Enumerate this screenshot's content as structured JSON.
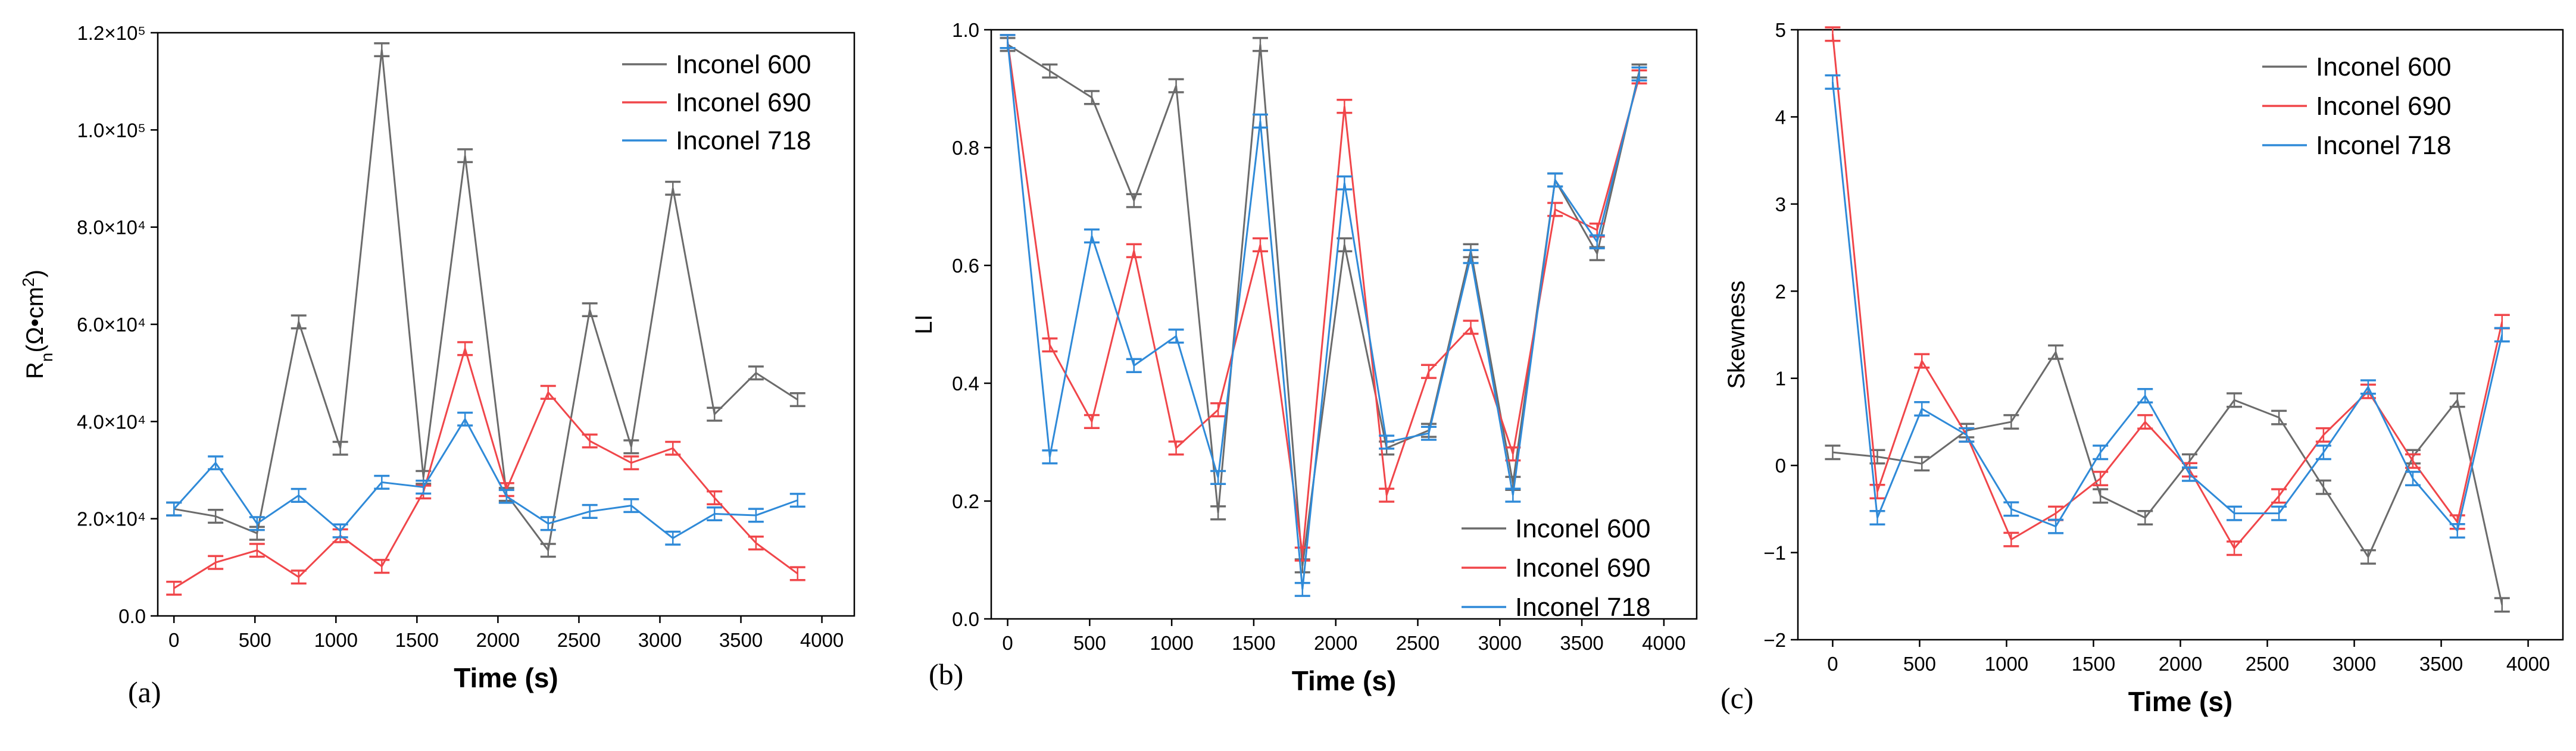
{
  "colors": {
    "Inconel 600": "#6b6b6b",
    "Inconel 690": "#f0464a",
    "Inconel 718": "#2f8ad8"
  },
  "chart_data": [
    {
      "panel_label": "(a)",
      "type": "line",
      "xlabel": "Time (s)",
      "ylabel_parts": [
        "R",
        "n",
        "(Ω•cm",
        "2",
        ")"
      ],
      "xlim": [
        -100,
        4200
      ],
      "ylim": [
        0,
        120000
      ],
      "xticks": [
        0,
        500,
        1000,
        1500,
        2000,
        2500,
        3000,
        3500,
        4000
      ],
      "yticks": [
        0,
        20000,
        40000,
        60000,
        80000,
        100000,
        120000
      ],
      "ytick_labels": [
        "0.0",
        "2.0×10⁴",
        "4.0×10⁴",
        "6.0×10⁴",
        "8.0×10⁴",
        "1.0×10⁵",
        "1.2×10⁵"
      ],
      "grid": false,
      "legend_position": "top-right",
      "x": [
        0,
        257,
        513,
        770,
        1027,
        1283,
        1540,
        1797,
        2053,
        2310,
        2567,
        2823,
        3080,
        3337,
        3593,
        3850
      ],
      "series": [
        {
          "name": "Inconel 600",
          "values": [
            22000,
            20500,
            17000,
            60500,
            34500,
            116500,
            28500,
            94700,
            25000,
            13500,
            63000,
            34800,
            88000,
            41500,
            50000,
            44500
          ]
        },
        {
          "name": "Inconel 690",
          "values": [
            5700,
            11000,
            13500,
            8000,
            16500,
            10200,
            25500,
            55000,
            26000,
            46000,
            36000,
            31500,
            34500,
            24300,
            15000,
            8700
          ]
        },
        {
          "name": "Inconel 718",
          "values": [
            22000,
            31500,
            19000,
            24800,
            17500,
            27500,
            26500,
            40500,
            24600,
            19000,
            21500,
            22700,
            16000,
            21000,
            20700,
            23800
          ]
        }
      ]
    },
    {
      "panel_label": "(b)",
      "type": "line",
      "xlabel": "Time (s)",
      "ylabel": "LI",
      "xlim": [
        -100,
        4200
      ],
      "ylim": [
        0,
        1.0
      ],
      "xticks": [
        0,
        500,
        1000,
        1500,
        2000,
        2500,
        3000,
        3500,
        4000
      ],
      "yticks": [
        0.0,
        0.2,
        0.4,
        0.6,
        0.8,
        1.0
      ],
      "ytick_labels": [
        "0.0",
        "0.2",
        "0.4",
        "0.6",
        "0.8",
        "1.0"
      ],
      "grid": false,
      "legend_position": "bottom-right",
      "x": [
        0,
        257,
        513,
        770,
        1027,
        1283,
        1540,
        1797,
        2053,
        2310,
        2567,
        2823,
        3080,
        3337,
        3593,
        3850
      ],
      "series": [
        {
          "name": "Inconel 600",
          "values": [
            0.975,
            0.93,
            0.885,
            0.71,
            0.905,
            0.18,
            0.975,
            0.09,
            0.635,
            0.29,
            0.32,
            0.625,
            0.23,
            0.745,
            0.62,
            0.93
          ]
        },
        {
          "name": "Inconel 690",
          "values": [
            0.98,
            0.465,
            0.335,
            0.625,
            0.29,
            0.355,
            0.635,
            0.11,
            0.87,
            0.21,
            0.42,
            0.495,
            0.28,
            0.695,
            0.66,
            0.92
          ]
        },
        {
          "name": "Inconel 718",
          "values": [
            0.98,
            0.275,
            0.65,
            0.43,
            0.48,
            0.24,
            0.845,
            0.05,
            0.74,
            0.3,
            0.315,
            0.615,
            0.21,
            0.745,
            0.64,
            0.925
          ]
        }
      ]
    },
    {
      "panel_label": "(c)",
      "type": "line",
      "xlabel": "Time (s)",
      "ylabel": "Skewness",
      "xlim": [
        -200,
        4200
      ],
      "ylim": [
        -2,
        5
      ],
      "xticks": [
        0,
        500,
        1000,
        1500,
        2000,
        2500,
        3000,
        3500,
        4000
      ],
      "yticks": [
        -2,
        -1,
        0,
        1,
        2,
        3,
        4,
        5
      ],
      "ytick_labels": [
        "−2",
        "−1",
        "0",
        "1",
        "2",
        "3",
        "4",
        "5"
      ],
      "grid": false,
      "legend_position": "top-right",
      "x": [
        0,
        257,
        513,
        770,
        1027,
        1283,
        1540,
        1797,
        2053,
        2310,
        2567,
        2823,
        3080,
        3337,
        3593,
        3850
      ],
      "series": [
        {
          "name": "Inconel 600",
          "values": [
            0.15,
            0.1,
            0.02,
            0.4,
            0.5,
            1.3,
            -0.35,
            -0.6,
            0.05,
            0.75,
            0.55,
            -0.25,
            -1.05,
            0.1,
            0.75,
            -1.6
          ]
        },
        {
          "name": "Inconel 690",
          "values": [
            4.95,
            -0.3,
            1.2,
            0.35,
            -0.85,
            -0.55,
            -0.15,
            0.5,
            -0.05,
            -0.95,
            -0.35,
            0.35,
            0.85,
            0.05,
            -0.65,
            1.65
          ]
        },
        {
          "name": "Inconel 718",
          "values": [
            4.4,
            -0.6,
            0.65,
            0.35,
            -0.5,
            -0.7,
            0.15,
            0.8,
            -0.1,
            -0.55,
            -0.55,
            0.15,
            0.9,
            -0.15,
            -0.75,
            1.5
          ]
        }
      ]
    }
  ]
}
